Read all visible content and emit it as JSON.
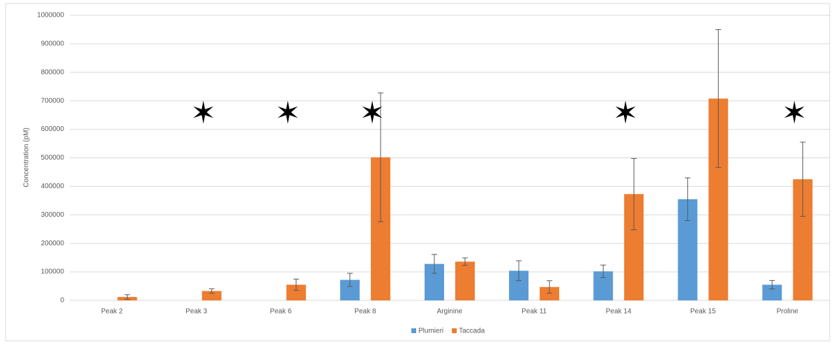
{
  "chart_data": {
    "type": "bar",
    "y_label": "Concentration (pM)",
    "categories": [
      "Peak 2",
      "Peak 3",
      "Peak 6",
      "Peak 8",
      "Arginine",
      "Peak 11",
      "Peak 14",
      "Peak 15",
      "Proline"
    ],
    "series": [
      {
        "name": "Plumieri",
        "color": "#5b9bd5",
        "values": [
          null,
          null,
          null,
          72000,
          128000,
          104000,
          102000,
          355000,
          55000
        ],
        "errors": [
          null,
          null,
          null,
          23000,
          33000,
          35000,
          22000,
          75000,
          15000
        ]
      },
      {
        "name": "Taccada",
        "color": "#ed7d31",
        "values": [
          12000,
          33000,
          55000,
          502000,
          136000,
          47000,
          373000,
          708000,
          425000
        ],
        "errors": [
          8000,
          8000,
          20000,
          226000,
          13000,
          22000,
          125000,
          242000,
          130000
        ]
      }
    ],
    "annotations": [
      {
        "text": "✶",
        "x": "Peak 3",
        "y": 650000
      },
      {
        "text": "✶",
        "x": "Peak 6",
        "y": 650000
      },
      {
        "text": "✶",
        "x": "Peak 8",
        "y": 650000
      },
      {
        "text": "✶",
        "x": "Peak 14",
        "y": 650000
      },
      {
        "text": "✶",
        "x": "Proline",
        "y": 650000
      }
    ],
    "ylim": [
      0,
      1000000
    ],
    "yticks": [
      0,
      100000,
      200000,
      300000,
      400000,
      500000,
      600000,
      700000,
      800000,
      900000,
      1000000
    ],
    "grid": true,
    "legend": "bottom"
  }
}
